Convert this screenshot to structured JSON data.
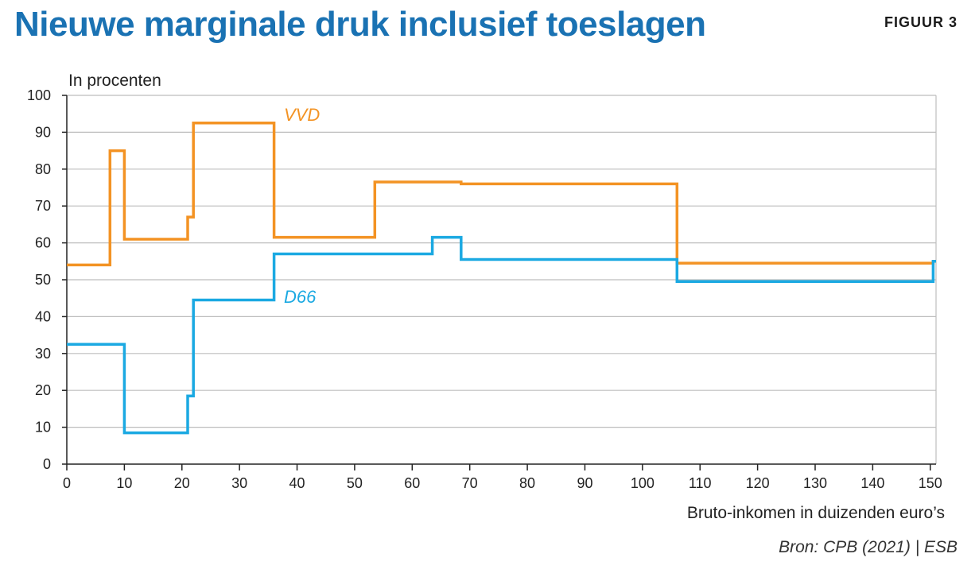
{
  "header": {
    "title": "Nieuwe marginale druk inclusief toeslagen",
    "figure_label": "FIGUUR 3"
  },
  "footer": {
    "source": "Bron:  CPB (2021) | ESB"
  },
  "colors": {
    "title": "#1a72b3",
    "vvd": "#f39324",
    "d66": "#1ba9e2",
    "grid": "#bdbdbd"
  },
  "chart_data": {
    "type": "line",
    "step": true,
    "ylabel": "In procenten",
    "xlabel": "Bruto-inkomen in duizenden euro’s",
    "xlim": [
      0,
      151
    ],
    "ylim": [
      0,
      100
    ],
    "xticks": [
      0,
      10,
      20,
      30,
      40,
      50,
      60,
      70,
      80,
      90,
      100,
      110,
      120,
      130,
      140,
      150
    ],
    "yticks": [
      0,
      10,
      20,
      30,
      40,
      50,
      60,
      70,
      80,
      90,
      100
    ],
    "grid": true,
    "series": [
      {
        "name": "VVD",
        "color": "#f39324",
        "points": [
          [
            0,
            54
          ],
          [
            7.5,
            54
          ],
          [
            7.5,
            85
          ],
          [
            10,
            85
          ],
          [
            10,
            61
          ],
          [
            21,
            61
          ],
          [
            21,
            67
          ],
          [
            22,
            67
          ],
          [
            22,
            92.5
          ],
          [
            36,
            92.5
          ],
          [
            36,
            61.5
          ],
          [
            53.5,
            61.5
          ],
          [
            53.5,
            76.5
          ],
          [
            68.5,
            76.5
          ],
          [
            68.5,
            76
          ],
          [
            106,
            76
          ],
          [
            106,
            54.5
          ],
          [
            150.5,
            54.5
          ],
          [
            150.5,
            55
          ],
          [
            151,
            55
          ]
        ]
      },
      {
        "name": "D66",
        "color": "#1ba9e2",
        "points": [
          [
            0,
            32.5
          ],
          [
            10,
            32.5
          ],
          [
            10,
            8.5
          ],
          [
            21,
            8.5
          ],
          [
            21,
            18.5
          ],
          [
            22,
            18.5
          ],
          [
            22,
            44.5
          ],
          [
            36,
            44.5
          ],
          [
            36,
            57
          ],
          [
            63.5,
            57
          ],
          [
            63.5,
            61.5
          ],
          [
            68.5,
            61.5
          ],
          [
            68.5,
            55.5
          ],
          [
            106,
            55.5
          ],
          [
            106,
            49.5
          ],
          [
            150.5,
            49.5
          ],
          [
            150.5,
            55
          ],
          [
            151,
            55
          ]
        ]
      }
    ]
  }
}
